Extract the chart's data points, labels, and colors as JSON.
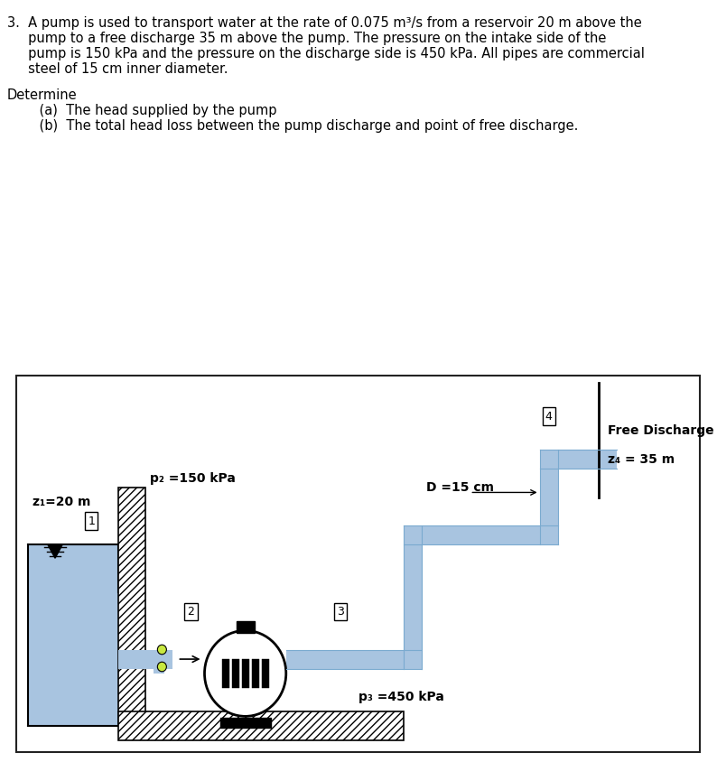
{
  "bg_color": "#ffffff",
  "dark_bar_color": "#1a1a1a",
  "water_color": "#a8c4e0",
  "pipe_color": "#a8c4e0",
  "hatch_color": "#555555",
  "diagram_border_color": "#222222",
  "label_z1": "z₁=20 m",
  "label_p2": "p₂ =150 kPa",
  "label_p3": "p₃ =450 kPa",
  "label_D": "D =15 cm",
  "label_free": "Free Discharge",
  "label_z4": "z₄ = 35 m",
  "node1": "1",
  "node2": "2",
  "node3": "3",
  "node4": "4",
  "line1": "3.  A pump is used to transport water at the rate of 0.075 m³/s from a reservoir 20 m above the",
  "line2": "     pump to a free discharge 35 m above the pump. The pressure on the intake side of the",
  "line3": "     pump is 150 kPa and the pressure on the discharge side is 450 kPa. All pipes are commercial",
  "line4": "     steel of 15 cm inner diameter.",
  "line5": "Determine",
  "line6": "    (a)  The head supplied by the pump",
  "line7": "    (b)  The total head loss between the pump discharge and point of free discharge."
}
